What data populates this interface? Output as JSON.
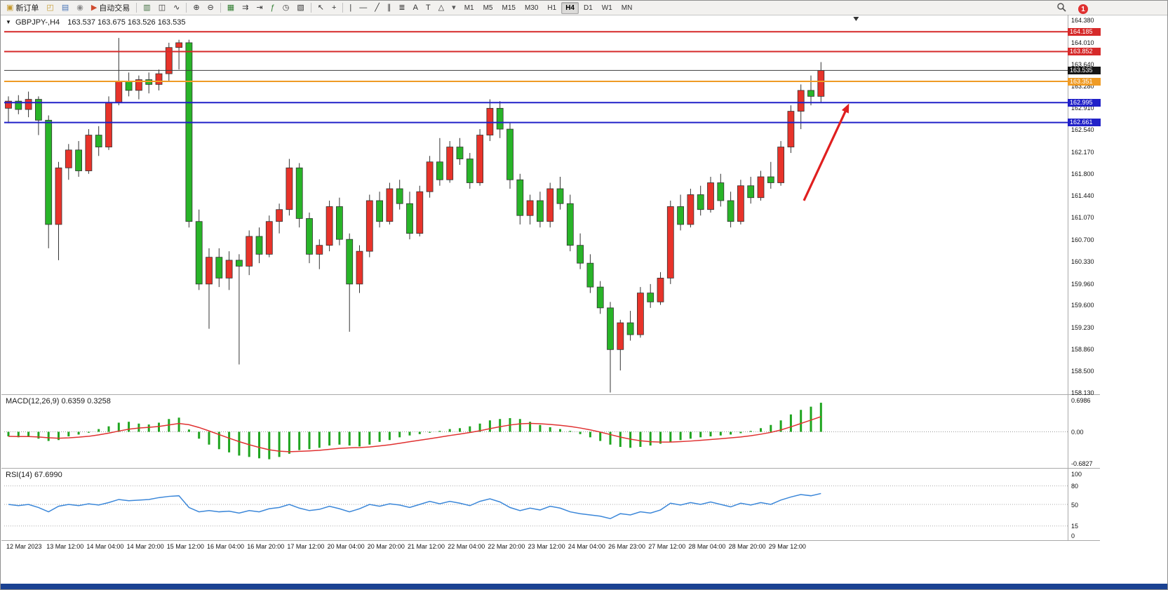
{
  "window": {
    "bottom_bar_color": "#1a4292"
  },
  "toolbar": {
    "notification_count": "1",
    "active_timeframe": "H4",
    "items": [
      {
        "type": "button",
        "name": "new-order-button",
        "label": "新订单",
        "icon": "▣",
        "icon_color": "#c59a2f",
        "icon_name": "new-order-icon"
      },
      {
        "type": "icon",
        "name": "chart-window-icon",
        "glyph": "◰",
        "color": "#c59a2f"
      },
      {
        "type": "icon",
        "name": "profiles-icon",
        "glyph": "▤",
        "color": "#4a76b8"
      },
      {
        "type": "icon",
        "name": "metaquotes-community-icon",
        "glyph": "◉",
        "color": "#8a8a8a"
      },
      {
        "type": "button",
        "name": "auto-trading-button",
        "label": "自动交易",
        "icon": "▶",
        "icon_color": "#cf4b2f",
        "icon_name": "auto-trading-icon"
      },
      {
        "type": "sep"
      },
      {
        "type": "icon",
        "name": "bar-chart-icon",
        "glyph": "▥",
        "color": "#3d6b3d"
      },
      {
        "type": "icon",
        "name": "candlestick-chart-icon",
        "glyph": "◫",
        "color": "#333333"
      },
      {
        "type": "icon",
        "name": "line-chart-icon",
        "glyph": "∿",
        "color": "#333333"
      },
      {
        "type": "sep"
      },
      {
        "type": "icon",
        "name": "zoom-in-icon",
        "glyph": "⊕",
        "color": "#333333"
      },
      {
        "type": "icon",
        "name": "zoom-out-icon",
        "glyph": "⊖",
        "color": "#333333"
      },
      {
        "type": "sep"
      },
      {
        "type": "icon",
        "name": "tile-windows-icon",
        "glyph": "▦",
        "color": "#2f7d2f"
      },
      {
        "type": "icon",
        "name": "auto-scroll-icon",
        "glyph": "⇉",
        "color": "#333333"
      },
      {
        "type": "icon",
        "name": "chart-shift-icon",
        "glyph": "⇥",
        "color": "#333333"
      },
      {
        "type": "icon",
        "name": "indicators-icon",
        "glyph": "ƒ",
        "color": "#2f7d2f"
      },
      {
        "type": "icon",
        "name": "periods-icon",
        "glyph": "◷",
        "color": "#333333"
      },
      {
        "type": "icon",
        "name": "templates-icon",
        "glyph": "▧",
        "color": "#333333"
      },
      {
        "type": "sep"
      },
      {
        "type": "icon",
        "name": "cursor-icon",
        "glyph": "↖",
        "color": "#333333"
      },
      {
        "type": "icon",
        "name": "crosshair-icon",
        "glyph": "+",
        "color": "#333333"
      },
      {
        "type": "sep"
      },
      {
        "type": "icon",
        "name": "vertical-line-icon",
        "glyph": "|",
        "color": "#333333"
      },
      {
        "type": "icon",
        "name": "horizontal-line-icon",
        "glyph": "―",
        "color": "#333333"
      },
      {
        "type": "icon",
        "name": "trendline-icon",
        "glyph": "╱",
        "color": "#333333"
      },
      {
        "type": "icon",
        "name": "equidistant-channel-icon",
        "glyph": "∥",
        "color": "#333333"
      },
      {
        "type": "icon",
        "name": "fibonacci-icon",
        "glyph": "≣",
        "color": "#333333"
      },
      {
        "type": "icon",
        "name": "text-icon",
        "glyph": "A",
        "color": "#333333"
      },
      {
        "type": "icon",
        "name": "text-label-icon",
        "glyph": "T",
        "color": "#333333"
      },
      {
        "type": "icon",
        "name": "shapes-icon",
        "glyph": "△",
        "color": "#333333"
      },
      {
        "type": "icon",
        "name": "dropdown-caret-icon",
        "glyph": "▾",
        "color": "#555555"
      },
      {
        "type": "tf",
        "label": "M1"
      },
      {
        "type": "tf",
        "label": "M5"
      },
      {
        "type": "tf",
        "label": "M15"
      },
      {
        "type": "tf",
        "label": "M30"
      },
      {
        "type": "tf",
        "label": "H1"
      },
      {
        "type": "tf",
        "label": "H4"
      },
      {
        "type": "tf",
        "label": "D1"
      },
      {
        "type": "tf",
        "label": "W1"
      },
      {
        "type": "tf",
        "label": "MN"
      }
    ]
  },
  "chart": {
    "collapse_icon": "▼",
    "symbol": "GBPJPY-,H4",
    "ohlc_text": "163.537 163.675 163.526 163.535",
    "macd_label": "MACD(12,26,9) 0.6359 0.3258",
    "rsi_label": "RSI(14) 67.6990",
    "price_axis_ticks": [
      "164.380",
      "164.010",
      "163.640",
      "163.280",
      "162.910",
      "162.540",
      "162.170",
      "161.800",
      "161.440",
      "161.070",
      "160.700",
      "160.330",
      "159.960",
      "159.600",
      "159.230",
      "158.860",
      "158.500",
      "158.130"
    ],
    "macd_axis_ticks": [
      "0.6986",
      "0.00",
      "-0.6827"
    ],
    "rsi_axis_ticks": [
      "100",
      "80",
      "50",
      "15",
      "0"
    ],
    "price_lines": [
      {
        "price": 164.185,
        "label": "164.185",
        "color": "#d62a2a",
        "width": 2
      },
      {
        "price": 163.852,
        "label": "163.852",
        "color": "#d62a2a",
        "width": 2
      },
      {
        "price": 163.351,
        "label": "163.351",
        "color": "#ef9b25",
        "width": 2
      },
      {
        "price": 162.995,
        "label": "162.995",
        "color": "#2121c8",
        "width": 2
      },
      {
        "price": 162.661,
        "label": "162.661",
        "color": "#2121c8",
        "width": 2
      }
    ],
    "current_price": {
      "price": 163.535,
      "label": "163.535",
      "line_color": "#3c3c3c",
      "box_color": "#151515"
    },
    "annotation_arrow": {
      "color": "#e01f1f",
      "from_index": 79.3,
      "from_price": 161.35,
      "to_index": 83.8,
      "to_price": 162.98
    },
    "shift_marker_index": 84.5
  },
  "chart_data": [
    {
      "type": "candlestick",
      "title": "GBPJPY- H4",
      "up_color": "#e8332a",
      "down_color": "#28b428",
      "wick_color": "#333333",
      "outline": "#333333",
      "ylim": [
        158.1,
        164.47
      ],
      "x_labels": [
        "12 Mar 2023",
        "13 Mar 12:00",
        "14 Mar 04:00",
        "14 Mar 20:00",
        "15 Mar 12:00",
        "16 Mar 04:00",
        "16 Mar 20:00",
        "17 Mar 12:00",
        "20 Mar 04:00",
        "20 Mar 20:00",
        "21 Mar 12:00",
        "22 Mar 04:00",
        "22 Mar 20:00",
        "23 Mar 12:00",
        "24 Mar 04:00",
        "26 Mar 23:00",
        "27 Mar 12:00",
        "28 Mar 04:00",
        "28 Mar 20:00",
        "29 Mar 12:00"
      ],
      "ohlc": [
        [
          162.9,
          163.1,
          162.65,
          163.02
        ],
        [
          163.02,
          163.12,
          162.8,
          162.88
        ],
        [
          162.88,
          163.18,
          162.75,
          163.05
        ],
        [
          163.05,
          163.1,
          162.45,
          162.7
        ],
        [
          162.7,
          162.78,
          160.55,
          160.95
        ],
        [
          160.95,
          162.0,
          160.35,
          161.9
        ],
        [
          161.9,
          162.3,
          161.7,
          162.2
        ],
        [
          162.2,
          162.35,
          161.75,
          161.85
        ],
        [
          161.85,
          162.55,
          161.8,
          162.45
        ],
        [
          162.45,
          162.6,
          162.1,
          162.25
        ],
        [
          162.25,
          163.1,
          162.2,
          163.0
        ],
        [
          163.0,
          164.08,
          162.95,
          163.35
        ],
        [
          163.35,
          163.5,
          163.1,
          163.2
        ],
        [
          163.2,
          163.45,
          163.05,
          163.38
        ],
        [
          163.38,
          163.5,
          163.15,
          163.3
        ],
        [
          163.3,
          163.55,
          163.2,
          163.48
        ],
        [
          163.48,
          164.0,
          163.35,
          163.92
        ],
        [
          163.92,
          164.05,
          163.55,
          164.0
        ],
        [
          164.0,
          164.05,
          160.9,
          161.0
        ],
        [
          161.0,
          161.2,
          159.85,
          159.95
        ],
        [
          159.95,
          160.55,
          159.2,
          160.4
        ],
        [
          160.4,
          160.55,
          159.9,
          160.05
        ],
        [
          160.05,
          160.5,
          159.85,
          160.35
        ],
        [
          160.35,
          160.45,
          158.6,
          160.25
        ],
        [
          160.25,
          160.85,
          160.1,
          160.75
        ],
        [
          160.75,
          160.9,
          160.3,
          160.45
        ],
        [
          160.45,
          161.1,
          160.4,
          161.0
        ],
        [
          161.0,
          161.3,
          160.8,
          161.2
        ],
        [
          161.2,
          162.05,
          161.1,
          161.9
        ],
        [
          161.9,
          161.98,
          160.9,
          161.05
        ],
        [
          161.05,
          161.15,
          160.3,
          160.45
        ],
        [
          160.45,
          160.7,
          160.2,
          160.6
        ],
        [
          160.6,
          161.35,
          160.5,
          161.25
        ],
        [
          161.25,
          161.4,
          160.6,
          160.7
        ],
        [
          160.7,
          160.8,
          159.15,
          159.95
        ],
        [
          159.95,
          160.6,
          159.8,
          160.5
        ],
        [
          160.5,
          161.45,
          160.4,
          161.35
        ],
        [
          161.35,
          161.5,
          160.9,
          161.0
        ],
        [
          161.0,
          161.65,
          160.95,
          161.55
        ],
        [
          161.55,
          161.7,
          161.2,
          161.3
        ],
        [
          161.3,
          161.5,
          160.7,
          160.8
        ],
        [
          160.8,
          161.6,
          160.75,
          161.5
        ],
        [
          161.5,
          162.1,
          161.4,
          162.0
        ],
        [
          162.0,
          162.4,
          161.6,
          161.7
        ],
        [
          161.7,
          162.35,
          161.65,
          162.25
        ],
        [
          162.25,
          162.4,
          161.95,
          162.05
        ],
        [
          162.05,
          162.15,
          161.55,
          161.65
        ],
        [
          161.65,
          162.55,
          161.6,
          162.45
        ],
        [
          162.45,
          163.05,
          162.35,
          162.9
        ],
        [
          162.9,
          163.02,
          162.4,
          162.55
        ],
        [
          162.55,
          162.65,
          161.55,
          161.7
        ],
        [
          161.7,
          161.8,
          160.95,
          161.1
        ],
        [
          161.1,
          161.45,
          160.95,
          161.35
        ],
        [
          161.35,
          161.5,
          160.9,
          161.0
        ],
        [
          161.0,
          161.65,
          160.9,
          161.55
        ],
        [
          161.55,
          161.75,
          161.2,
          161.3
        ],
        [
          161.3,
          161.45,
          160.5,
          160.6
        ],
        [
          160.6,
          160.8,
          160.2,
          160.3
        ],
        [
          160.3,
          160.45,
          159.8,
          159.9
        ],
        [
          159.9,
          160.0,
          159.45,
          159.55
        ],
        [
          159.55,
          159.65,
          158.13,
          158.85
        ],
        [
          158.85,
          159.35,
          158.5,
          159.3
        ],
        [
          159.3,
          159.5,
          159.0,
          159.1
        ],
        [
          159.1,
          159.9,
          159.05,
          159.8
        ],
        [
          159.8,
          159.95,
          159.55,
          159.65
        ],
        [
          159.65,
          160.15,
          159.6,
          160.05
        ],
        [
          160.05,
          161.35,
          159.95,
          161.25
        ],
        [
          161.25,
          161.45,
          160.85,
          160.95
        ],
        [
          160.95,
          161.55,
          160.9,
          161.45
        ],
        [
          161.45,
          161.6,
          161.1,
          161.2
        ],
        [
          161.2,
          161.75,
          161.15,
          161.65
        ],
        [
          161.65,
          161.8,
          161.25,
          161.35
        ],
        [
          161.35,
          161.5,
          160.9,
          161.0
        ],
        [
          161.0,
          161.7,
          160.95,
          161.6
        ],
        [
          161.6,
          161.75,
          161.3,
          161.4
        ],
        [
          161.4,
          161.85,
          161.35,
          161.75
        ],
        [
          161.75,
          162.0,
          161.55,
          161.65
        ],
        [
          161.65,
          162.35,
          161.6,
          162.25
        ],
        [
          162.25,
          162.95,
          162.15,
          162.85
        ],
        [
          162.85,
          163.3,
          162.55,
          163.2
        ],
        [
          163.2,
          163.45,
          162.95,
          163.1
        ],
        [
          163.1,
          163.675,
          163.0,
          163.535
        ]
      ]
    },
    {
      "type": "bar",
      "name": "MACD(12,26,9)",
      "bar_color": "#1fa51f",
      "signal_color": "#e03131",
      "signal_period": 9,
      "ylim": [
        -0.6827,
        0.6986
      ],
      "current_values": "0.6359 0.3258",
      "values": [
        -0.1,
        -0.12,
        -0.1,
        -0.15,
        -0.2,
        -0.18,
        -0.1,
        -0.06,
        -0.02,
        0.06,
        0.12,
        0.2,
        0.22,
        0.18,
        0.16,
        0.2,
        0.28,
        0.31,
        0.05,
        -0.15,
        -0.28,
        -0.38,
        -0.45,
        -0.52,
        -0.55,
        -0.58,
        -0.6,
        -0.55,
        -0.48,
        -0.4,
        -0.38,
        -0.35,
        -0.3,
        -0.28,
        -0.3,
        -0.32,
        -0.28,
        -0.22,
        -0.18,
        -0.12,
        -0.08,
        -0.05,
        -0.02,
        0.02,
        0.06,
        0.08,
        0.12,
        0.18,
        0.25,
        0.28,
        0.3,
        0.28,
        0.22,
        0.15,
        0.1,
        0.06,
        0.02,
        -0.05,
        -0.12,
        -0.2,
        -0.28,
        -0.33,
        -0.35,
        -0.33,
        -0.3,
        -0.26,
        -0.22,
        -0.18,
        -0.15,
        -0.12,
        -0.1,
        -0.08,
        -0.06,
        -0.03,
        0.02,
        0.08,
        0.15,
        0.25,
        0.38,
        0.48,
        0.55,
        0.6359
      ]
    },
    {
      "type": "line",
      "name": "RSI(14)",
      "color": "#3b87d9",
      "ylim": [
        0,
        100
      ],
      "levels": [
        80,
        50,
        15
      ],
      "current_value": "67.6990",
      "values": [
        50,
        48,
        50,
        45,
        38,
        47,
        50,
        48,
        51,
        49,
        53,
        58,
        56,
        57,
        58,
        61,
        63,
        64,
        45,
        38,
        40,
        38,
        39,
        36,
        40,
        38,
        43,
        45,
        50,
        44,
        40,
        42,
        47,
        43,
        38,
        43,
        50,
        47,
        51,
        49,
        45,
        50,
        55,
        51,
        55,
        52,
        48,
        55,
        59,
        54,
        45,
        40,
        44,
        41,
        47,
        44,
        38,
        35,
        33,
        31,
        27,
        35,
        33,
        38,
        36,
        41,
        52,
        49,
        53,
        50,
        54,
        50,
        46,
        52,
        49,
        53,
        50,
        57,
        62,
        66,
        64,
        67.699
      ]
    }
  ]
}
